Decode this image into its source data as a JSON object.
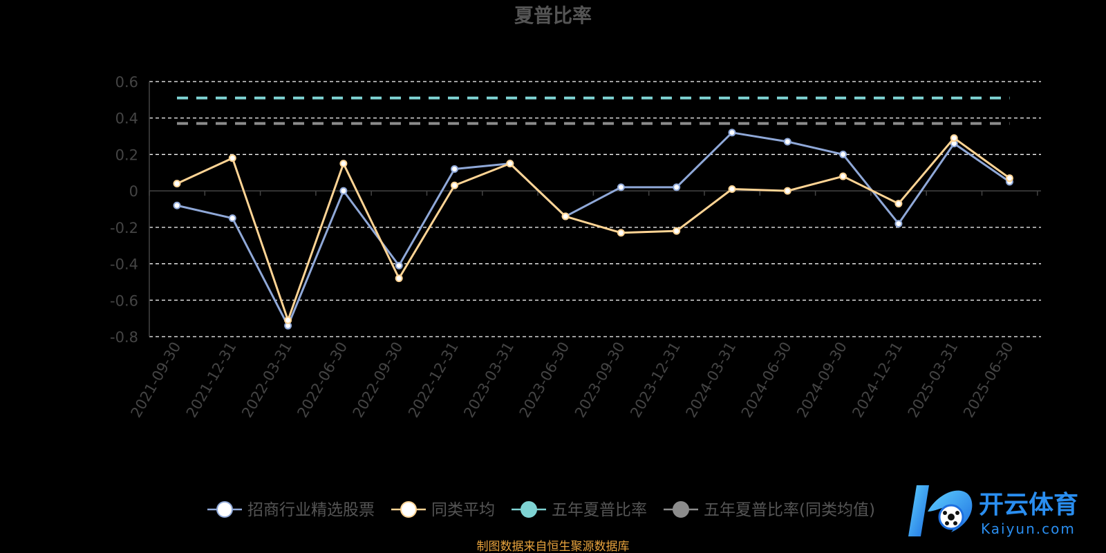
{
  "chart_data": {
    "type": "line",
    "title": "夏普比率",
    "source": "制图数据来自恒生聚源数据库",
    "categories": [
      "2021-09-30",
      "2021-12-31",
      "2022-03-31",
      "2022-06-30",
      "2022-09-30",
      "2022-12-31",
      "2023-03-31",
      "2023-06-30",
      "2023-09-30",
      "2023-12-31",
      "2024-03-31",
      "2024-06-30",
      "2024-09-30",
      "2024-12-31",
      "2025-03-31",
      "2025-06-30"
    ],
    "ylim": [
      -0.8,
      0.6
    ],
    "yticks": [
      0.6,
      0.4,
      0.2,
      0,
      -0.2,
      -0.4,
      -0.6,
      -0.8
    ],
    "ytick_labels": [
      "0.6",
      "0.4",
      "0.2",
      "0",
      "-0.2",
      "-0.4",
      "-0.6",
      "-0.8"
    ],
    "grid": true,
    "legend_position": "bottom",
    "series": [
      {
        "name": "招商行业精选股票",
        "color": "#8fa8d8",
        "style": "solid",
        "values": [
          -0.08,
          -0.15,
          -0.74,
          0.0,
          -0.41,
          0.12,
          0.15,
          -0.14,
          0.02,
          0.02,
          0.32,
          0.27,
          0.2,
          -0.18,
          0.26,
          0.05
        ]
      },
      {
        "name": "同类平均",
        "color": "#ffd494",
        "style": "solid",
        "values": [
          0.04,
          0.18,
          -0.71,
          0.15,
          -0.48,
          0.03,
          0.15,
          -0.14,
          -0.23,
          -0.22,
          0.01,
          0.0,
          0.08,
          -0.07,
          0.29,
          0.07
        ]
      },
      {
        "name": "五年夏普比率",
        "color": "#7ed3d3",
        "style": "dashed",
        "values": [
          0.51,
          0.51,
          0.51,
          0.51,
          0.51,
          0.51,
          0.51,
          0.51,
          0.51,
          0.51,
          0.51,
          0.51,
          0.51,
          0.51,
          0.51,
          0.51
        ]
      },
      {
        "name": "五年夏普比率(同类均值)",
        "color": "#8c8c8c",
        "style": "dashed",
        "values": [
          0.37,
          0.37,
          0.37,
          0.37,
          0.37,
          0.37,
          0.37,
          0.37,
          0.37,
          0.37,
          0.37,
          0.37,
          0.37,
          0.37,
          0.37,
          0.37
        ]
      }
    ],
    "colors": {
      "title": "#555555",
      "axis": "#444444",
      "tick_label": "#444444",
      "grid": "#ffffff",
      "legend_text": "#555555",
      "source": "#e8a33d"
    }
  },
  "watermark": {
    "brand": "开云体育",
    "site": "Kaiyun.com",
    "icon": "kaiyun-logo-icon"
  }
}
